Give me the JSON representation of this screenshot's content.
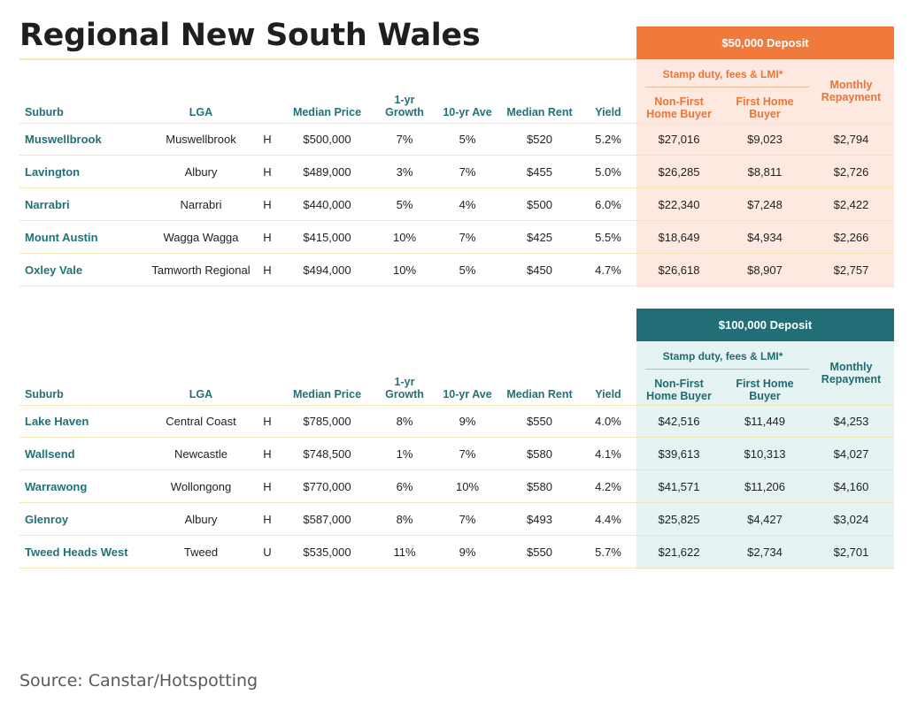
{
  "title": "Regional New South Wales",
  "source": "Source: Canstar/Hotspotting",
  "colors": {
    "orange": "#ef7a3c",
    "teal": "#226e76",
    "orange_panel": "#fde9df",
    "teal_panel": "#e6f3f3",
    "row_rule": "#f2e7b6"
  },
  "columns": {
    "suburb": "Suburb",
    "lga": "LGA",
    "median_price": "Median Price",
    "growth_1yr_line1": "1-yr",
    "growth_1yr_line2": "Growth",
    "ave_10yr": "10-yr Ave",
    "median_rent": "Median Rent",
    "yield": "Yield",
    "stamp_duty": "Stamp duty, fees & LMI*",
    "non_first_line1": "Non-First",
    "non_first_line2": "Home Buyer",
    "first_home_line1": "First Home",
    "first_home_line2": "Buyer",
    "monthly_line1": "Monthly",
    "monthly_line2": "Repayment"
  },
  "tables": [
    {
      "deposit_label": "$50,000 Deposit",
      "rows": [
        {
          "suburb": "Muswellbrook",
          "lga": "Muswellbrook",
          "type": "H",
          "median_price": "$500,000",
          "growth_1yr": "7%",
          "ave_10yr": "5%",
          "median_rent": "$520",
          "yield": "5.2%",
          "non_first": "$27,016",
          "first_home": "$9,023",
          "monthly": "$2,794"
        },
        {
          "suburb": "Lavington",
          "lga": "Albury",
          "type": "H",
          "median_price": "$489,000",
          "growth_1yr": "3%",
          "ave_10yr": "7%",
          "median_rent": "$455",
          "yield": "5.0%",
          "non_first": "$26,285",
          "first_home": "$8,811",
          "monthly": "$2,726"
        },
        {
          "suburb": "Narrabri",
          "lga": "Narrabri",
          "type": "H",
          "median_price": "$440,000",
          "growth_1yr": "5%",
          "ave_10yr": "4%",
          "median_rent": "$500",
          "yield": "6.0%",
          "non_first": "$22,340",
          "first_home": "$7,248",
          "monthly": "$2,422"
        },
        {
          "suburb": "Mount Austin",
          "lga": "Wagga Wagga",
          "type": "H",
          "median_price": "$415,000",
          "growth_1yr": "10%",
          "ave_10yr": "7%",
          "median_rent": "$425",
          "yield": "5.5%",
          "non_first": "$18,649",
          "first_home": "$4,934",
          "monthly": "$2,266"
        },
        {
          "suburb": "Oxley Vale",
          "lga": "Tamworth Regional",
          "type": "H",
          "median_price": "$494,000",
          "growth_1yr": "10%",
          "ave_10yr": "5%",
          "median_rent": "$450",
          "yield": "4.7%",
          "non_first": "$26,618",
          "first_home": "$8,907",
          "monthly": "$2,757"
        }
      ]
    },
    {
      "deposit_label": "$100,000 Deposit",
      "rows": [
        {
          "suburb": "Lake Haven",
          "lga": "Central Coast",
          "type": "H",
          "median_price": "$785,000",
          "growth_1yr": "8%",
          "ave_10yr": "9%",
          "median_rent": "$550",
          "yield": "4.0%",
          "non_first": "$42,516",
          "first_home": "$11,449",
          "monthly": "$4,253"
        },
        {
          "suburb": "Wallsend",
          "lga": "Newcastle",
          "type": "H",
          "median_price": "$748,500",
          "growth_1yr": "1%",
          "ave_10yr": "7%",
          "median_rent": "$580",
          "yield": "4.1%",
          "non_first": "$39,613",
          "first_home": "$10,313",
          "monthly": "$4,027"
        },
        {
          "suburb": "Warrawong",
          "lga": "Wollongong",
          "type": "H",
          "median_price": "$770,000",
          "growth_1yr": "6%",
          "ave_10yr": "10%",
          "median_rent": "$580",
          "yield": "4.2%",
          "non_first": "$41,571",
          "first_home": "$11,206",
          "monthly": "$4,160"
        },
        {
          "suburb": "Glenroy",
          "lga": "Albury",
          "type": "H",
          "median_price": "$587,000",
          "growth_1yr": "8%",
          "ave_10yr": "7%",
          "median_rent": "$493",
          "yield": "4.4%",
          "non_first": "$25,825",
          "first_home": "$4,427",
          "monthly": "$3,024"
        },
        {
          "suburb": "Tweed Heads West",
          "lga": "Tweed",
          "type": "U",
          "median_price": "$535,000",
          "growth_1yr": "11%",
          "ave_10yr": "9%",
          "median_rent": "$550",
          "yield": "5.7%",
          "non_first": "$21,622",
          "first_home": "$2,734",
          "monthly": "$2,701"
        }
      ]
    }
  ]
}
